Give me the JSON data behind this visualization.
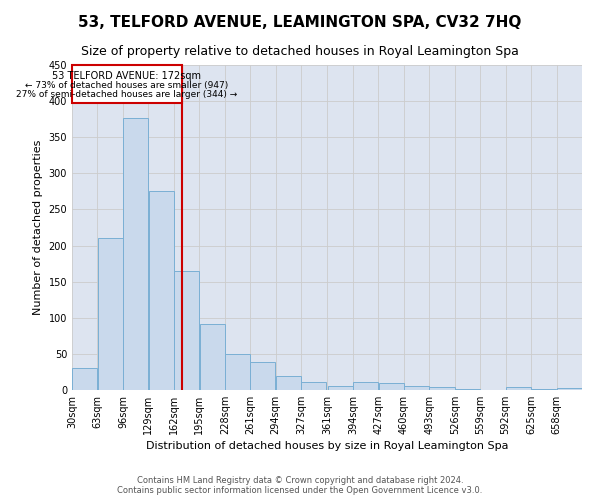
{
  "title": "53, TELFORD AVENUE, LEAMINGTON SPA, CV32 7HQ",
  "subtitle": "Size of property relative to detached houses in Royal Leamington Spa",
  "xlabel": "Distribution of detached houses by size in Royal Leamington Spa",
  "ylabel": "Number of detached properties",
  "footer_line1": "Contains HM Land Registry data © Crown copyright and database right 2024.",
  "footer_line2": "Contains public sector information licensed under the Open Government Licence v3.0.",
  "bar_color": "#c9d9ec",
  "bar_edgecolor": "#7aafd4",
  "vline_x": 172,
  "vline_color": "#cc0000",
  "annotation_title": "53 TELFORD AVENUE: 172sqm",
  "annotation_line1": "← 73% of detached houses are smaller (947)",
  "annotation_line2": "27% of semi-detached houses are larger (344) →",
  "annotation_box_color": "#cc0000",
  "bin_edges": [
    30,
    63,
    96,
    129,
    162,
    195,
    228,
    261,
    294,
    327,
    361,
    394,
    427,
    460,
    493,
    526,
    559,
    592,
    625,
    658,
    691
  ],
  "bar_heights": [
    30,
    210,
    377,
    276,
    165,
    92,
    50,
    39,
    20,
    11,
    6,
    11,
    10,
    5,
    4,
    1,
    0,
    4,
    2,
    3
  ],
  "ylim": [
    0,
    450
  ],
  "yticks": [
    0,
    50,
    100,
    150,
    200,
    250,
    300,
    350,
    400,
    450
  ],
  "grid_color": "#cccccc",
  "bg_color": "#dde4f0",
  "title_fontsize": 11,
  "subtitle_fontsize": 9,
  "ylabel_fontsize": 8,
  "xlabel_fontsize": 8,
  "tick_fontsize": 7,
  "footer_fontsize": 6
}
